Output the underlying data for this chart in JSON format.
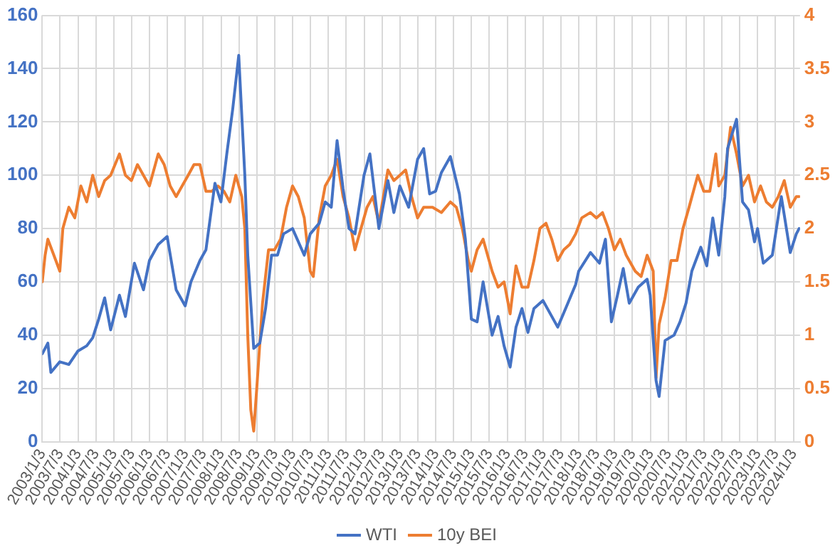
{
  "chart_data": {
    "type": "line",
    "xlim": [
      "2003-01-03",
      "2024-03-10"
    ],
    "xticks": [
      {
        "value": "2003-01-03",
        "label": "2003/1/3"
      },
      {
        "value": "2003-07-03",
        "label": "2003/7/3"
      },
      {
        "value": "2004-01-03",
        "label": "2004/1/3"
      },
      {
        "value": "2004-07-03",
        "label": "2004/7/3"
      },
      {
        "value": "2005-01-03",
        "label": "2005/1/3"
      },
      {
        "value": "2005-07-03",
        "label": "2005/7/3"
      },
      {
        "value": "2006-01-03",
        "label": "2006/1/3"
      },
      {
        "value": "2006-07-03",
        "label": "2006/7/3"
      },
      {
        "value": "2007-01-03",
        "label": "2007/1/3"
      },
      {
        "value": "2007-07-03",
        "label": "2007/7/3"
      },
      {
        "value": "2008-01-03",
        "label": "2008/1/3"
      },
      {
        "value": "2008-07-03",
        "label": "2008/7/3"
      },
      {
        "value": "2009-01-03",
        "label": "2009/1/3"
      },
      {
        "value": "2009-07-03",
        "label": "2009/7/3"
      },
      {
        "value": "2010-01-03",
        "label": "2010/1/3"
      },
      {
        "value": "2010-07-03",
        "label": "2010/7/3"
      },
      {
        "value": "2011-01-03",
        "label": "2011/1/3"
      },
      {
        "value": "2011-07-03",
        "label": "2011/7/3"
      },
      {
        "value": "2012-01-03",
        "label": "2012/1/3"
      },
      {
        "value": "2012-07-03",
        "label": "2012/7/3"
      },
      {
        "value": "2013-01-03",
        "label": "2013/1/3"
      },
      {
        "value": "2013-07-03",
        "label": "2013/7/3"
      },
      {
        "value": "2014-01-03",
        "label": "2014/1/3"
      },
      {
        "value": "2014-07-03",
        "label": "2014/7/3"
      },
      {
        "value": "2015-01-03",
        "label": "2015/1/3"
      },
      {
        "value": "2015-07-03",
        "label": "2015/7/3"
      },
      {
        "value": "2016-01-03",
        "label": "2016/1/3"
      },
      {
        "value": "2016-07-03",
        "label": "2016/7/3"
      },
      {
        "value": "2017-01-03",
        "label": "2017/1/3"
      },
      {
        "value": "2017-07-03",
        "label": "2017/7/3"
      },
      {
        "value": "2018-01-03",
        "label": "2018/1/3"
      },
      {
        "value": "2018-07-03",
        "label": "2018/7/3"
      },
      {
        "value": "2019-01-03",
        "label": "2019/1/3"
      },
      {
        "value": "2019-07-03",
        "label": "2019/7/3"
      },
      {
        "value": "2020-01-03",
        "label": "2020/1/3"
      },
      {
        "value": "2020-07-03",
        "label": "2020/7/3"
      },
      {
        "value": "2021-01-03",
        "label": "2021/1/3"
      },
      {
        "value": "2021-07-03",
        "label": "2021/7/3"
      },
      {
        "value": "2022-01-03",
        "label": "2022/1/3"
      },
      {
        "value": "2022-07-03",
        "label": "2022/7/3"
      },
      {
        "value": "2023-01-03",
        "label": "2023/1/3"
      },
      {
        "value": "2023-07-03",
        "label": "2023/7/3"
      },
      {
        "value": "2024-01-03",
        "label": "2024/1/3"
      }
    ],
    "ylim": [
      0,
      160
    ],
    "yticks": [
      0,
      20,
      40,
      60,
      80,
      100,
      120,
      140,
      160
    ],
    "y2lim": [
      0,
      4
    ],
    "y2ticks": [
      0,
      0.5,
      1,
      1.5,
      2,
      2.5,
      3,
      3.5,
      4
    ],
    "grid": true,
    "legend": "bottom",
    "marker": "none",
    "line_style": "solid",
    "series": [
      {
        "name": "WTI",
        "color": "#4472c4",
        "x": [
          "2003-01-03",
          "2003-03",
          "2003-04",
          "2003-07",
          "2003-10",
          "2004-01",
          "2004-04",
          "2004-06",
          "2004-08",
          "2004-10",
          "2004-12",
          "2005-03",
          "2005-05",
          "2005-08",
          "2005-11",
          "2006-01",
          "2006-04",
          "2006-07",
          "2006-10",
          "2007-01",
          "2007-03",
          "2007-06",
          "2007-08",
          "2007-11",
          "2008-01",
          "2008-03",
          "2008-05",
          "2008-07",
          "2008-09",
          "2008-10",
          "2008-12",
          "2009-02",
          "2009-04",
          "2009-06",
          "2009-08",
          "2009-10",
          "2010-01",
          "2010-05",
          "2010-07",
          "2010-10",
          "2010-12",
          "2011-02",
          "2011-04",
          "2011-06",
          "2011-08",
          "2011-10",
          "2012-01",
          "2012-03",
          "2012-06",
          "2012-09",
          "2012-11",
          "2013-01",
          "2013-04",
          "2013-07",
          "2013-09",
          "2013-11",
          "2014-01",
          "2014-03",
          "2014-06",
          "2014-09",
          "2014-11",
          "2015-01",
          "2015-03",
          "2015-05",
          "2015-08",
          "2015-10",
          "2015-12",
          "2016-02",
          "2016-04",
          "2016-06",
          "2016-08",
          "2016-10",
          "2017-01",
          "2017-06",
          "2017-09",
          "2017-12",
          "2018-01",
          "2018-05",
          "2018-08",
          "2018-10",
          "2018-12",
          "2019-02",
          "2019-04",
          "2019-06",
          "2019-09",
          "2019-12",
          "2020-01",
          "2020-03",
          "2020-04",
          "2020-06",
          "2020-09",
          "2020-11",
          "2021-01",
          "2021-03",
          "2021-06",
          "2021-08",
          "2021-10",
          "2021-12",
          "2022-02",
          "2022-03",
          "2022-06",
          "2022-08",
          "2022-10",
          "2022-12",
          "2023-01",
          "2023-03",
          "2023-06",
          "2023-09",
          "2023-12",
          "2024-02",
          "2024-03"
        ],
        "values": [
          33,
          37,
          26,
          30,
          29,
          34,
          36,
          39,
          46,
          54,
          42,
          55,
          47,
          67,
          57,
          68,
          74,
          77,
          57,
          51,
          60,
          68,
          72,
          97,
          90,
          108,
          125,
          145,
          100,
          70,
          35,
          37,
          50,
          70,
          70,
          78,
          80,
          70,
          78,
          82,
          90,
          88,
          113,
          95,
          80,
          78,
          100,
          108,
          80,
          98,
          86,
          96,
          88,
          106,
          110,
          93,
          94,
          101,
          107,
          93,
          76,
          46,
          45,
          60,
          40,
          47,
          36,
          28,
          43,
          50,
          41,
          50,
          53,
          43,
          51,
          59,
          64,
          71,
          67,
          76,
          45,
          55,
          65,
          52,
          58,
          61,
          55,
          23,
          17,
          38,
          40,
          45,
          52,
          64,
          73,
          66,
          84,
          70,
          92,
          110,
          121,
          90,
          87,
          75,
          80,
          67,
          70,
          92,
          71,
          78,
          80
        ]
      },
      {
        "name": "10y BEI",
        "color": "#ed7d31",
        "axis": "y2",
        "x": [
          "2003-01-03",
          "2003-02",
          "2003-03",
          "2003-05",
          "2003-07",
          "2003-08",
          "2003-10",
          "2003-12",
          "2004-02",
          "2004-04",
          "2004-06",
          "2004-08",
          "2004-10",
          "2004-12",
          "2005-03",
          "2005-05",
          "2005-07",
          "2005-09",
          "2005-11",
          "2006-01",
          "2006-04",
          "2006-06",
          "2006-08",
          "2006-10",
          "2006-12",
          "2007-02",
          "2007-04",
          "2007-06",
          "2007-08",
          "2007-10",
          "2007-12",
          "2008-02",
          "2008-04",
          "2008-06",
          "2008-08",
          "2008-09",
          "2008-10",
          "2008-11",
          "2008-12",
          "2009-01",
          "2009-03",
          "2009-05",
          "2009-07",
          "2009-09",
          "2009-11",
          "2010-01",
          "2010-03",
          "2010-05",
          "2010-07",
          "2010-08",
          "2010-10",
          "2010-12",
          "2011-02",
          "2011-04",
          "2011-06",
          "2011-08",
          "2011-10",
          "2011-12",
          "2012-02",
          "2012-04",
          "2012-06",
          "2012-09",
          "2012-11",
          "2013-01",
          "2013-03",
          "2013-05",
          "2013-07",
          "2013-09",
          "2013-12",
          "2014-03",
          "2014-06",
          "2014-08",
          "2014-10",
          "2014-12",
          "2015-01",
          "2015-03",
          "2015-05",
          "2015-08",
          "2015-10",
          "2015-12",
          "2016-02",
          "2016-04",
          "2016-06",
          "2016-08",
          "2016-10",
          "2016-12",
          "2017-02",
          "2017-04",
          "2017-06",
          "2017-08",
          "2017-10",
          "2017-12",
          "2018-02",
          "2018-05",
          "2018-07",
          "2018-09",
          "2018-11",
          "2019-01",
          "2019-03",
          "2019-05",
          "2019-08",
          "2019-10",
          "2019-12",
          "2020-02",
          "2020-03",
          "2020-04",
          "2020-06",
          "2020-08",
          "2020-10",
          "2020-12",
          "2021-02",
          "2021-05",
          "2021-07",
          "2021-09",
          "2021-11",
          "2021-12",
          "2022-02",
          "2022-04",
          "2022-06",
          "2022-08",
          "2022-10",
          "2022-12",
          "2023-02",
          "2023-04",
          "2023-06",
          "2023-08",
          "2023-10",
          "2023-12",
          "2024-02",
          "2024-03"
        ],
        "values": [
          1.5,
          1.75,
          1.9,
          1.75,
          1.6,
          2.0,
          2.2,
          2.1,
          2.4,
          2.25,
          2.5,
          2.3,
          2.45,
          2.5,
          2.7,
          2.5,
          2.45,
          2.6,
          2.5,
          2.4,
          2.7,
          2.6,
          2.4,
          2.3,
          2.4,
          2.5,
          2.6,
          2.6,
          2.35,
          2.35,
          2.4,
          2.35,
          2.25,
          2.5,
          2.3,
          2.0,
          1.0,
          0.3,
          0.1,
          0.5,
          1.3,
          1.8,
          1.8,
          1.9,
          2.2,
          2.4,
          2.3,
          2.1,
          1.6,
          1.55,
          2.1,
          2.4,
          2.5,
          2.65,
          2.3,
          2.1,
          1.8,
          2.0,
          2.2,
          2.3,
          2.05,
          2.55,
          2.45,
          2.5,
          2.55,
          2.3,
          2.1,
          2.2,
          2.2,
          2.15,
          2.25,
          2.2,
          2.0,
          1.7,
          1.6,
          1.8,
          1.9,
          1.6,
          1.45,
          1.5,
          1.2,
          1.65,
          1.45,
          1.45,
          1.7,
          2.0,
          2.05,
          1.9,
          1.7,
          1.8,
          1.85,
          1.95,
          2.1,
          2.15,
          2.1,
          2.15,
          2.0,
          1.8,
          1.9,
          1.75,
          1.6,
          1.55,
          1.75,
          1.6,
          0.6,
          1.1,
          1.35,
          1.7,
          1.7,
          2.0,
          2.2,
          2.5,
          2.35,
          2.35,
          2.7,
          2.4,
          2.5,
          2.95,
          2.7,
          2.4,
          2.5,
          2.25,
          2.4,
          2.25,
          2.2,
          2.3,
          2.45,
          2.2,
          2.3,
          2.3
        ]
      }
    ]
  }
}
